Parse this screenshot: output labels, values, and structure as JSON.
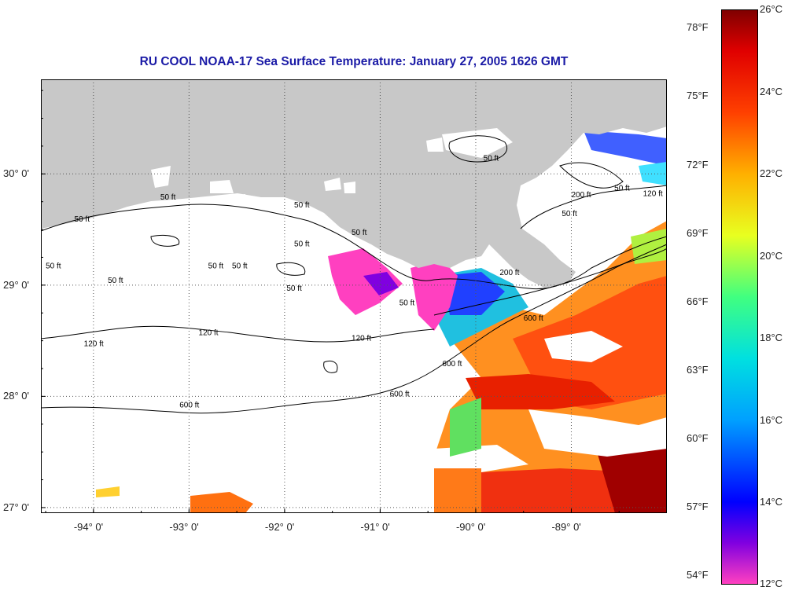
{
  "title": "RU COOL  NOAA-17  Sea Surface Temperature:  January 27, 2005 1626 GMT",
  "map": {
    "lon_range": [
      -94.55,
      -88.0
    ],
    "lat_range": [
      26.95,
      30.85
    ],
    "land_color": "#c8c8c8",
    "cloud_color": "#ffffff",
    "lon_ticks": [
      {
        "value": -94,
        "label": "-94° 0'"
      },
      {
        "value": -93,
        "label": "-93° 0'"
      },
      {
        "value": -92,
        "label": "-92° 0'"
      },
      {
        "value": -91,
        "label": "-91° 0'"
      },
      {
        "value": -90,
        "label": "-90° 0'"
      },
      {
        "value": -89,
        "label": "-89° 0'"
      }
    ],
    "lat_ticks": [
      {
        "value": 30,
        "label": "30° 0'"
      },
      {
        "value": 29,
        "label": "29° 0'"
      },
      {
        "value": 28,
        "label": "28° 0'"
      },
      {
        "value": 27,
        "label": "27° 0'"
      }
    ],
    "contour_labels": [
      {
        "text": "50 ft",
        "lon": -93.3,
        "lat": 29.77
      },
      {
        "text": "50 ft",
        "lon": -94.2,
        "lat": 29.57
      },
      {
        "text": "50 ft",
        "lon": -92.55,
        "lat": 29.15
      },
      {
        "text": "50 ft",
        "lon": -93.85,
        "lat": 29.02
      },
      {
        "text": "50 ft",
        "lon": -94.5,
        "lat": 29.15
      },
      {
        "text": "50 ft",
        "lon": -91.9,
        "lat": 29.35
      },
      {
        "text": "50 ft",
        "lon": -91.9,
        "lat": 29.7
      },
      {
        "text": "50 ft",
        "lon": -91.3,
        "lat": 29.45
      },
      {
        "text": "50 ft",
        "lon": -92.8,
        "lat": 29.15
      },
      {
        "text": "50 ft",
        "lon": -91.98,
        "lat": 28.95
      },
      {
        "text": "50 ft",
        "lon": -90.8,
        "lat": 28.82
      },
      {
        "text": "50 ft",
        "lon": -89.1,
        "lat": 29.62
      },
      {
        "text": "50 ft",
        "lon": -88.55,
        "lat": 29.85
      },
      {
        "text": "50 ft",
        "lon": -89.92,
        "lat": 30.12
      },
      {
        "text": "120 ft",
        "lon": -92.9,
        "lat": 28.55
      },
      {
        "text": "120 ft",
        "lon": -94.1,
        "lat": 28.45
      },
      {
        "text": "120 ft",
        "lon": -91.3,
        "lat": 28.5
      },
      {
        "text": "600 ft",
        "lon": -90.9,
        "lat": 28.0
      },
      {
        "text": "600 ft",
        "lon": -93.1,
        "lat": 27.9
      },
      {
        "text": "600 ft",
        "lon": -90.35,
        "lat": 28.27
      },
      {
        "text": "600 ft",
        "lon": -89.5,
        "lat": 28.68
      },
      {
        "text": "200 ft",
        "lon": -89.75,
        "lat": 29.09
      },
      {
        "text": "120 ft",
        "lon": -88.25,
        "lat": 29.8
      },
      {
        "text": "200 ft",
        "lon": -89.0,
        "lat": 29.79
      }
    ]
  },
  "colorbar": {
    "celsius_labels": [
      "26°C",
      "24°C",
      "22°C",
      "20°C",
      "18°C",
      "16°C",
      "14°C",
      "12°C"
    ],
    "fahrenheit_labels": [
      "78°F",
      "75°F",
      "72°F",
      "69°F",
      "66°F",
      "63°F",
      "60°F",
      "57°F",
      "54°F"
    ],
    "range_c": [
      12,
      26
    ],
    "stops": [
      {
        "c": 12,
        "color": "#ff40c0"
      },
      {
        "c": 13.0,
        "color": "#8000e0"
      },
      {
        "c": 14.0,
        "color": "#0000ff"
      },
      {
        "c": 16.0,
        "color": "#00a0ff"
      },
      {
        "c": 17.5,
        "color": "#00e0e0"
      },
      {
        "c": 19.0,
        "color": "#40ff80"
      },
      {
        "c": 20.5,
        "color": "#e8ff20"
      },
      {
        "c": 22.0,
        "color": "#ffb000"
      },
      {
        "c": 23.5,
        "color": "#ff4000"
      },
      {
        "c": 25.0,
        "color": "#e00000"
      },
      {
        "c": 26.0,
        "color": "#800000"
      }
    ]
  }
}
